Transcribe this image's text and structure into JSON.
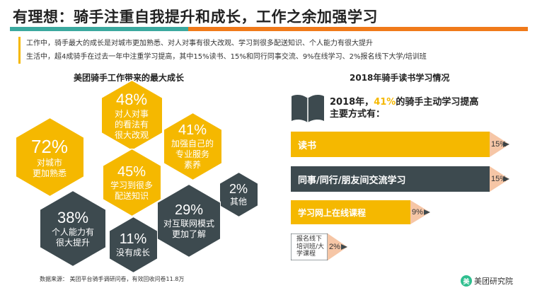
{
  "page": {
    "title": "有理想：骑手注重自我提升和成长，工作之余加强学习",
    "intro_line1": "工作中，骑手最大的成长是对城市更加熟悉、对人对事有很大改观、学习到很多配送知识、个人能力有很大提升",
    "intro_line2": "生活中，超4成骑手在过去一年中注重学习提高，其中15%读书、15%和同行同事交流、9%在线学习、2%报名线下大学/培训班",
    "source": "数据来源：  美团平台骑手调研问卷，有效回收问卷11.8万"
  },
  "colors": {
    "yellow": "#f5b800",
    "dark": "#3d4a4f",
    "teal": "#3ba99f",
    "orange": "#f07a1a",
    "tip": "#f6c6a6"
  },
  "chart_data": [
    {
      "type": "hexagon-grid",
      "title": "美团骑手工作带来的最大成长",
      "items": [
        {
          "value": "72%",
          "label": "对城市\n更加熟悉",
          "color": "yellow"
        },
        {
          "value": "48%",
          "label": "对人对事\n的看法有\n很大改观",
          "color": "yellow"
        },
        {
          "value": "41%",
          "label": "加强自己的\n专业服务\n素养",
          "color": "yellow"
        },
        {
          "value": "45%",
          "label": "学习到很多\n配送知识",
          "color": "yellow"
        },
        {
          "value": "2%",
          "label": "其他",
          "color": "dark"
        },
        {
          "value": "38%",
          "label": "个人能力有\n很大提升",
          "color": "dark"
        },
        {
          "value": "29%",
          "label": "对互联网模式\n更加了解",
          "color": "dark"
        },
        {
          "value": "11%",
          "label": "没有成长",
          "color": "dark"
        }
      ]
    },
    {
      "type": "bar",
      "title": "2018年骑手读书学习情况",
      "headline_pre": "2018年，",
      "headline_pct": "41%",
      "headline_post": "的骑手主动学习提高",
      "headline_line2": "主要方式有：",
      "categories": [
        "读书",
        "同事/同行/朋友间交流学习",
        "学习网上在线课程",
        "报名线下培训班/大学课程"
      ],
      "category_display": [
        "读书",
        "同事/同行/朋友间交流学习",
        "学习网上在线课程",
        "报名线下\n培训班/大\n学课程"
      ],
      "values": [
        15,
        15,
        9,
        2
      ],
      "value_labels": [
        "15%",
        "15%",
        "9%",
        "2%"
      ],
      "colors": [
        "yellow",
        "dark",
        "yellow",
        "white"
      ]
    }
  ],
  "logo": {
    "text": "美团研究院",
    "badge": "美"
  }
}
